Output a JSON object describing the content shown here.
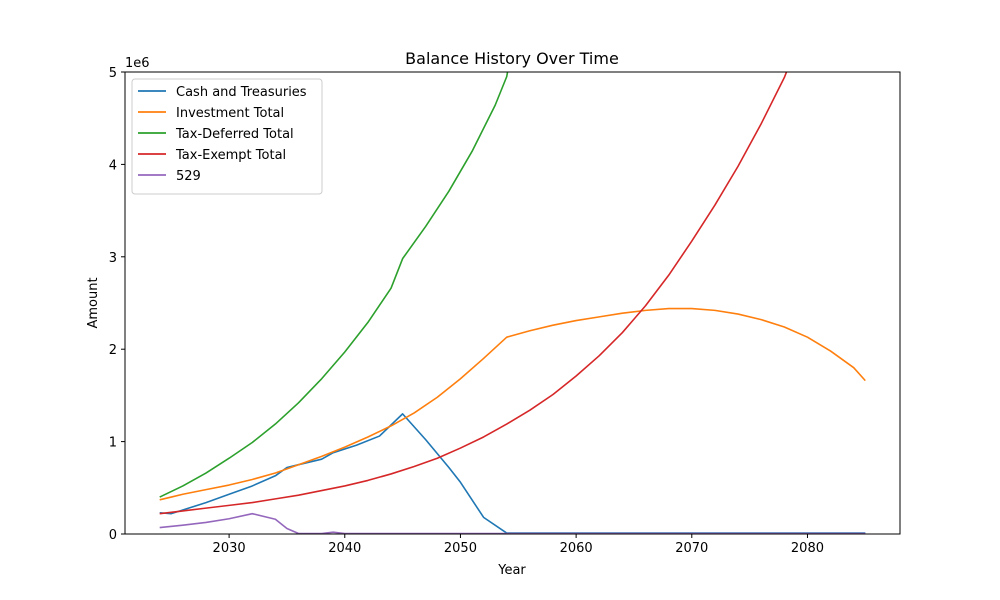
{
  "chart_data": {
    "type": "line",
    "title": "Balance History Over Time",
    "xlabel": "Year",
    "ylabel": "Amount",
    "y_offset_label": "1e6",
    "xlim": [
      2021,
      2088
    ],
    "ylim": [
      0,
      5000000
    ],
    "x_ticks": [
      2030,
      2040,
      2050,
      2060,
      2070,
      2080
    ],
    "y_ticks": [
      0,
      1000000,
      2000000,
      3000000,
      4000000,
      5000000
    ],
    "y_tick_labels": [
      "0",
      "1",
      "2",
      "3",
      "4",
      "5"
    ],
    "legend_position": "top-left",
    "grid": false,
    "series": [
      {
        "name": "Cash and Treasuries",
        "color": "#1f77b4",
        "points": [
          [
            2024,
            230000
          ],
          [
            2025,
            220000
          ],
          [
            2026,
            260000
          ],
          [
            2028,
            340000
          ],
          [
            2030,
            430000
          ],
          [
            2032,
            520000
          ],
          [
            2034,
            630000
          ],
          [
            2035,
            720000
          ],
          [
            2036,
            750000
          ],
          [
            2038,
            810000
          ],
          [
            2039,
            880000
          ],
          [
            2041,
            960000
          ],
          [
            2043,
            1060000
          ],
          [
            2045,
            1300000
          ],
          [
            2047,
            1020000
          ],
          [
            2049,
            720000
          ],
          [
            2050,
            560000
          ],
          [
            2052,
            180000
          ],
          [
            2054,
            10000
          ],
          [
            2060,
            10000
          ],
          [
            2070,
            10000
          ],
          [
            2080,
            10000
          ],
          [
            2085,
            10000
          ]
        ]
      },
      {
        "name": "Investment Total",
        "color": "#ff7f0e",
        "points": [
          [
            2024,
            370000
          ],
          [
            2025,
            400000
          ],
          [
            2026,
            430000
          ],
          [
            2028,
            480000
          ],
          [
            2030,
            530000
          ],
          [
            2032,
            590000
          ],
          [
            2034,
            660000
          ],
          [
            2036,
            750000
          ],
          [
            2038,
            840000
          ],
          [
            2040,
            940000
          ],
          [
            2042,
            1050000
          ],
          [
            2044,
            1170000
          ],
          [
            2046,
            1310000
          ],
          [
            2048,
            1480000
          ],
          [
            2050,
            1680000
          ],
          [
            2052,
            1900000
          ],
          [
            2054,
            2130000
          ],
          [
            2056,
            2200000
          ],
          [
            2058,
            2260000
          ],
          [
            2060,
            2310000
          ],
          [
            2062,
            2350000
          ],
          [
            2064,
            2390000
          ],
          [
            2066,
            2420000
          ],
          [
            2068,
            2440000
          ],
          [
            2069,
            2440000
          ],
          [
            2070,
            2440000
          ],
          [
            2072,
            2420000
          ],
          [
            2074,
            2380000
          ],
          [
            2076,
            2320000
          ],
          [
            2078,
            2240000
          ],
          [
            2080,
            2130000
          ],
          [
            2082,
            1980000
          ],
          [
            2084,
            1800000
          ],
          [
            2085,
            1660000
          ]
        ]
      },
      {
        "name": "Tax-Deferred Total",
        "color": "#2ca02c",
        "points": [
          [
            2024,
            400000
          ],
          [
            2026,
            520000
          ],
          [
            2028,
            660000
          ],
          [
            2030,
            820000
          ],
          [
            2032,
            990000
          ],
          [
            2034,
            1190000
          ],
          [
            2036,
            1420000
          ],
          [
            2038,
            1680000
          ],
          [
            2040,
            1970000
          ],
          [
            2042,
            2290000
          ],
          [
            2044,
            2660000
          ],
          [
            2045,
            2980000
          ],
          [
            2047,
            3330000
          ],
          [
            2049,
            3710000
          ],
          [
            2051,
            4140000
          ],
          [
            2053,
            4640000
          ],
          [
            2054,
            4950000
          ],
          [
            2054.5,
            5300000
          ]
        ]
      },
      {
        "name": "Tax-Exempt Total",
        "color": "#d62728",
        "points": [
          [
            2024,
            220000
          ],
          [
            2026,
            250000
          ],
          [
            2028,
            280000
          ],
          [
            2030,
            310000
          ],
          [
            2032,
            340000
          ],
          [
            2034,
            380000
          ],
          [
            2036,
            420000
          ],
          [
            2038,
            470000
          ],
          [
            2040,
            520000
          ],
          [
            2042,
            580000
          ],
          [
            2044,
            650000
          ],
          [
            2046,
            730000
          ],
          [
            2048,
            820000
          ],
          [
            2050,
            930000
          ],
          [
            2052,
            1050000
          ],
          [
            2054,
            1190000
          ],
          [
            2056,
            1340000
          ],
          [
            2058,
            1510000
          ],
          [
            2060,
            1710000
          ],
          [
            2062,
            1930000
          ],
          [
            2064,
            2180000
          ],
          [
            2066,
            2470000
          ],
          [
            2068,
            2800000
          ],
          [
            2070,
            3170000
          ],
          [
            2072,
            3560000
          ],
          [
            2074,
            3980000
          ],
          [
            2076,
            4440000
          ],
          [
            2078,
            4940000
          ],
          [
            2078.5,
            5100000
          ]
        ]
      },
      {
        "name": "529",
        "color": "#9467bd",
        "points": [
          [
            2024,
            70000
          ],
          [
            2026,
            95000
          ],
          [
            2028,
            125000
          ],
          [
            2030,
            165000
          ],
          [
            2032,
            220000
          ],
          [
            2034,
            160000
          ],
          [
            2035,
            60000
          ],
          [
            2036,
            5000
          ],
          [
            2038,
            5000
          ],
          [
            2039,
            20000
          ],
          [
            2040,
            5000
          ],
          [
            2050,
            5000
          ],
          [
            2060,
            5000
          ],
          [
            2070,
            5000
          ],
          [
            2080,
            5000
          ],
          [
            2085,
            5000
          ]
        ]
      }
    ]
  }
}
